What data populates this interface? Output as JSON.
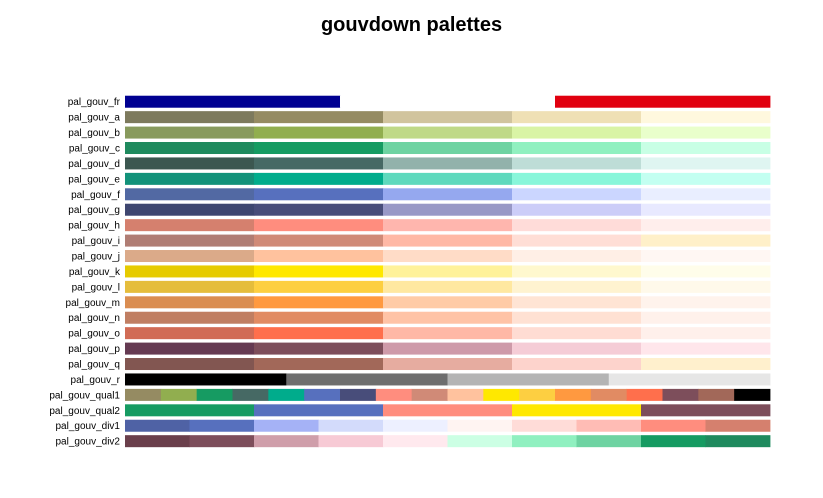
{
  "chart_data": {
    "type": "palette-swatch",
    "title": "gouvdown palettes",
    "palettes": [
      {
        "name": "pal_gouv_fr",
        "colors": [
          "#000091",
          "#FFFFFF",
          "#E1000F"
        ]
      },
      {
        "name": "pal_gouv_a",
        "colors": [
          "#7D7A5D",
          "#958B62",
          "#D1C49E",
          "#EFE0B5",
          "#FFF8DE"
        ]
      },
      {
        "name": "pal_gouv_b",
        "colors": [
          "#889A5D",
          "#91AE4F",
          "#BFD987",
          "#D9F4A5",
          "#E9FFCB"
        ]
      },
      {
        "name": "pal_gouv_c",
        "colors": [
          "#1F8A5E",
          "#169B62",
          "#6ED3A2",
          "#90F0C0",
          "#C8FFE5"
        ]
      },
      {
        "name": "pal_gouv_d",
        "colors": [
          "#3C5750",
          "#466964",
          "#92B2AB",
          "#BEDDD7",
          "#DFF5F1"
        ]
      },
      {
        "name": "pal_gouv_e",
        "colors": [
          "#12927A",
          "#00AC8C",
          "#5ED9BD",
          "#88F6DA",
          "#C3FFF1"
        ]
      },
      {
        "name": "pal_gouv_f",
        "colors": [
          "#5269A3",
          "#5770BE",
          "#95A8EF",
          "#CBD6FF",
          "#E9EEFF"
        ]
      },
      {
        "name": "pal_gouv_g",
        "colors": [
          "#3E4670",
          "#484D7A",
          "#9898C6",
          "#CCCDF8",
          "#E8E9FF"
        ]
      },
      {
        "name": "pal_gouv_h",
        "colors": [
          "#D5806E",
          "#FF8D7E",
          "#FFB6AE",
          "#FFDCD9",
          "#FFEEEC"
        ]
      },
      {
        "name": "pal_gouv_i",
        "colors": [
          "#B07D74",
          "#D08A77",
          "#FFB8A5",
          "#FFDED6",
          "#FFF0C9"
        ]
      },
      {
        "name": "pal_gouv_j",
        "colors": [
          "#DBAA89",
          "#FFC29E",
          "#FFDCC7",
          "#FFEFE6",
          "#FFF7F3"
        ]
      },
      {
        "name": "pal_gouv_k",
        "colors": [
          "#E6CB00",
          "#FFE800",
          "#FFF29A",
          "#FFF8CE",
          "#FFFDEA"
        ]
      },
      {
        "name": "pal_gouv_l",
        "colors": [
          "#E5BD3C",
          "#FDCF41",
          "#FFE8A0",
          "#FFF3D0",
          "#FFF9EA"
        ]
      },
      {
        "name": "pal_gouv_m",
        "colors": [
          "#DA8D51",
          "#FF9940",
          "#FFCBA6",
          "#FFE4D4",
          "#FFF3EC"
        ]
      },
      {
        "name": "pal_gouv_n",
        "colors": [
          "#C07E62",
          "#E18B63",
          "#FFC3A6",
          "#FFE1D3",
          "#FFF1EB"
        ]
      },
      {
        "name": "pal_gouv_o",
        "colors": [
          "#D16B55",
          "#FF6F4C",
          "#FFB8A6",
          "#FFDCD3",
          "#FFF0EB"
        ]
      },
      {
        "name": "pal_gouv_p",
        "colors": [
          "#653A52",
          "#7D4E5B",
          "#CE9AA9",
          "#F5CCD6",
          "#FFE6EB"
        ]
      },
      {
        "name": "pal_gouv_q",
        "colors": [
          "#825651",
          "#A26859",
          "#E6ACA0",
          "#FDD3CC",
          "#FFF0CD"
        ]
      },
      {
        "name": "pal_gouv_r",
        "colors": [
          "#000000",
          "#6E6E6E",
          "#B4B4B4",
          "#E6E6E6"
        ]
      },
      {
        "name": "pal_gouv_qual1",
        "colors": [
          "#958B62",
          "#91AE4F",
          "#169B62",
          "#466964",
          "#00AC8C",
          "#5770BE",
          "#484D7A",
          "#FF8D7E",
          "#D08A77",
          "#FFC29E",
          "#FFE800",
          "#FDCF41",
          "#FF9940",
          "#E18B63",
          "#FF6F4C",
          "#7D4E5B",
          "#A26859",
          "#000000"
        ]
      },
      {
        "name": "pal_gouv_qual2",
        "colors": [
          "#169B62",
          "#5770BE",
          "#FF8D7E",
          "#FFE800",
          "#7D4E5B"
        ]
      },
      {
        "name": "pal_gouv_div1",
        "colors": [
          "#4F62A5",
          "#5770BE",
          "#A5B2F6",
          "#D3DBFB",
          "#EDF0FF",
          "#FFF4F2",
          "#FFDCD8",
          "#FFBCB5",
          "#FF8D7E",
          "#D5806E"
        ]
      },
      {
        "name": "pal_gouv_div2",
        "colors": [
          "#6A3F4B",
          "#7D4E5B",
          "#CF9EAA",
          "#F7CAD5",
          "#FFE9EE",
          "#CCFFE4",
          "#90F0C0",
          "#6ED3A2",
          "#169B62",
          "#1F8A5E"
        ]
      }
    ]
  }
}
